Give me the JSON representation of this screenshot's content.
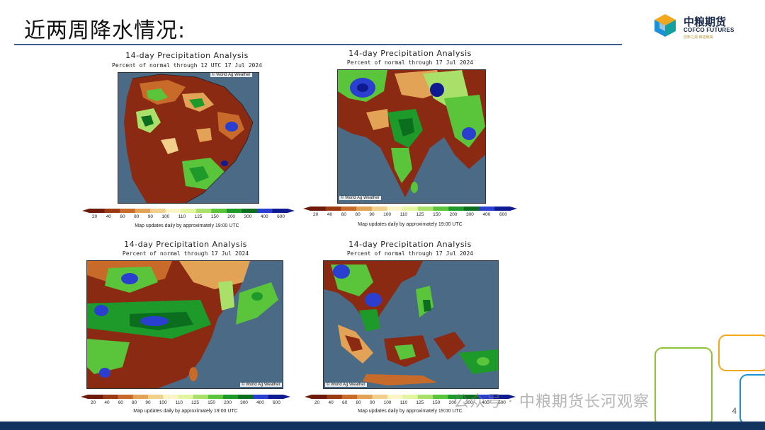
{
  "slide": {
    "title": "近两周降水情况:",
    "page_number": "4",
    "watermark": "公众号 · 中粮期货长河观察"
  },
  "logo": {
    "name_cn": "中粮期货",
    "name_en": "COFCO FUTURES",
    "tagline": "创新之源 臻善致美"
  },
  "colors": {
    "title_rule": "#3b5f8f",
    "bottom_bar": "#13345e",
    "dry": "#8b2a12",
    "wet": "#1a2fb5"
  },
  "legend": {
    "ticks": [
      "20",
      "40",
      "60",
      "80",
      "90",
      "100",
      "110",
      "125",
      "150",
      "200",
      "300",
      "400",
      "600"
    ],
    "colors": [
      "#6e1a0a",
      "#9a3a12",
      "#c76a2a",
      "#e3a356",
      "#f2d08c",
      "#fbf4c6",
      "#e4f5a0",
      "#a8e06a",
      "#5ac43a",
      "#1e9a2a",
      "#0b6e1e",
      "#2a3fd0",
      "#101a90"
    ]
  },
  "panels": [
    {
      "title": "14-day Precipitation Analysis",
      "subtitle": "Percent of normal through 12 UTC 17 Jul 2024",
      "credit": "© World Ag Weather",
      "note": "Map updates daily by approximately 19:00 UTC",
      "region": "south-america"
    },
    {
      "title": "14-day Precipitation Analysis",
      "subtitle": "Percent of normal through 17 Jul 2024",
      "credit": "© World Ag Weather",
      "note": "Map updates daily by approximately 19:00 UTC",
      "region": "south-asia"
    },
    {
      "title": "14-day Precipitation Analysis",
      "subtitle": "Percent of normal through 17 Jul 2024",
      "credit": "© World Ag Weather",
      "note": "Map updates daily by approximately 19:00 UTC",
      "region": "east-asia"
    },
    {
      "title": "14-day Precipitation Analysis",
      "subtitle": "Percent of normal through 17 Jul 2024",
      "credit": "© World Ag Weather",
      "note": "Map updates daily by approximately 19:00 UTC",
      "region": "southeast-asia"
    }
  ]
}
